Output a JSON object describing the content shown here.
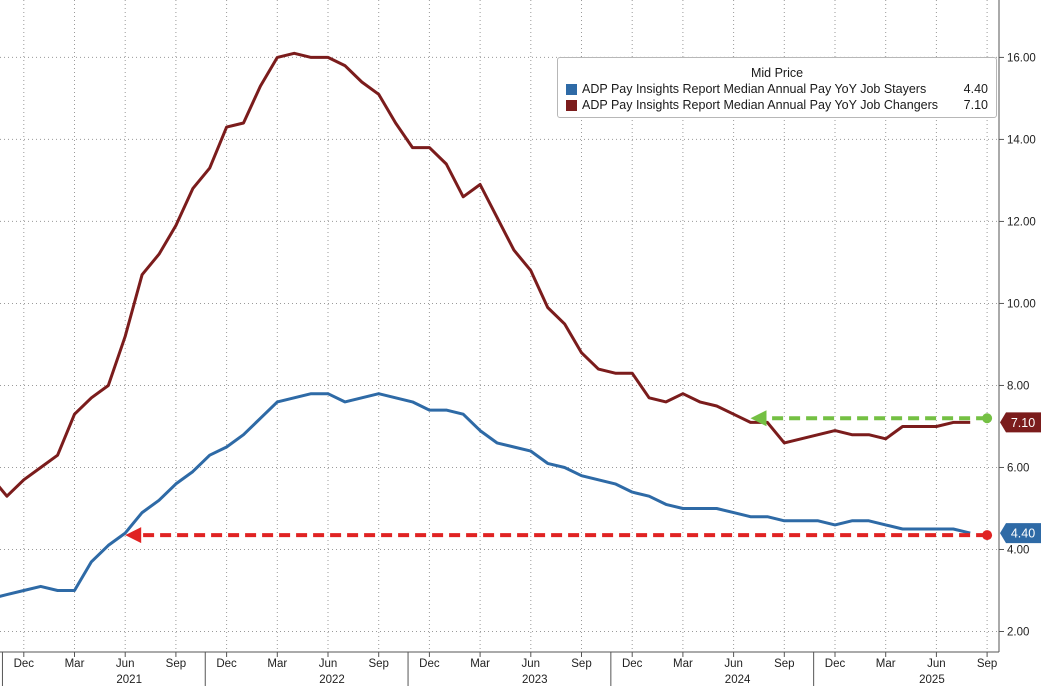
{
  "chart_data": {
    "type": "line",
    "legend_title": "Mid Price",
    "legend_position": "top-right",
    "y_axis_side": "right",
    "ylim": [
      1.5,
      17.4
    ],
    "y_ticks": [
      "2.00",
      "4.00",
      "6.00",
      "8.00",
      "10.00",
      "12.00",
      "14.00",
      "16.00"
    ],
    "y_tick_values": [
      2,
      4,
      6,
      8,
      10,
      12,
      14,
      16
    ],
    "x_start_month_index": 0,
    "x_end_month_index": 59,
    "month_tick_labels": [
      {
        "label": "Dec",
        "index": 2
      },
      {
        "label": "Mar",
        "index": 5
      },
      {
        "label": "Jun",
        "index": 8
      },
      {
        "label": "Sep",
        "index": 11
      },
      {
        "label": "Dec",
        "index": 14
      },
      {
        "label": "Mar",
        "index": 17
      },
      {
        "label": "Jun",
        "index": 20
      },
      {
        "label": "Sep",
        "index": 23
      },
      {
        "label": "Dec",
        "index": 26
      },
      {
        "label": "Mar",
        "index": 29
      },
      {
        "label": "Jun",
        "index": 32
      },
      {
        "label": "Sep",
        "index": 35
      },
      {
        "label": "Dec",
        "index": 38
      },
      {
        "label": "Mar",
        "index": 41
      },
      {
        "label": "Jun",
        "index": 44
      },
      {
        "label": "Sep",
        "index": 47
      },
      {
        "label": "Dec",
        "index": 50
      },
      {
        "label": "Mar",
        "index": 53
      },
      {
        "label": "Jun",
        "index": 56
      },
      {
        "label": "Sep",
        "index": 59
      }
    ],
    "year_labels": [
      {
        "label": "2021",
        "index": 8
      },
      {
        "label": "2022",
        "index": 20
      },
      {
        "label": "2023",
        "index": 32
      },
      {
        "label": "2024",
        "index": 44
      },
      {
        "label": "2025",
        "index": 55.5
      }
    ],
    "series": [
      {
        "name": "ADP Pay Insights Report Median Annual Pay YoY Job Stayers",
        "last_value": "4.40",
        "color": "#2e6aa6",
        "values": [
          2.8,
          2.9,
          3.0,
          3.1,
          3.0,
          3.0,
          3.7,
          4.1,
          4.4,
          4.9,
          5.2,
          5.6,
          5.9,
          6.3,
          6.5,
          6.8,
          7.2,
          7.6,
          7.7,
          7.8,
          7.8,
          7.6,
          7.7,
          7.8,
          7.7,
          7.6,
          7.4,
          7.4,
          7.3,
          6.9,
          6.6,
          6.5,
          6.4,
          6.1,
          6.0,
          5.8,
          5.7,
          5.6,
          5.4,
          5.3,
          5.1,
          5.0,
          5.0,
          5.0,
          4.9,
          4.8,
          4.8,
          4.7,
          4.7,
          4.7,
          4.6,
          4.7,
          4.7,
          4.6,
          4.5,
          4.5,
          4.5,
          4.5,
          4.4
        ]
      },
      {
        "name": "ADP Pay Insights Report Median Annual Pay YoY Job Changers",
        "last_value": "7.10",
        "color": "#7b1c1c",
        "values": [
          5.8,
          5.3,
          5.7,
          6.0,
          6.3,
          7.3,
          7.7,
          8.0,
          9.2,
          10.7,
          11.2,
          11.9,
          12.8,
          13.3,
          14.3,
          14.4,
          15.3,
          16.0,
          16.1,
          16.0,
          16.0,
          15.8,
          15.4,
          15.1,
          14.4,
          13.8,
          13.8,
          13.4,
          12.6,
          12.9,
          12.1,
          11.3,
          10.8,
          9.9,
          9.5,
          8.8,
          8.4,
          8.3,
          8.3,
          7.7,
          7.6,
          7.8,
          7.6,
          7.5,
          7.3,
          7.1,
          7.1,
          6.6,
          6.7,
          6.8,
          6.9,
          6.8,
          6.8,
          6.7,
          7.0,
          7.0,
          7.0,
          7.1,
          7.1
        ]
      }
    ],
    "annotations": [
      {
        "type": "dashed-arrow",
        "color": "#74c043",
        "from_index": 59,
        "to_index": 45,
        "value": 7.2
      },
      {
        "type": "dashed-arrow",
        "color": "#e02323",
        "from_index": 59,
        "to_index": 8,
        "value": 4.35
      }
    ]
  }
}
